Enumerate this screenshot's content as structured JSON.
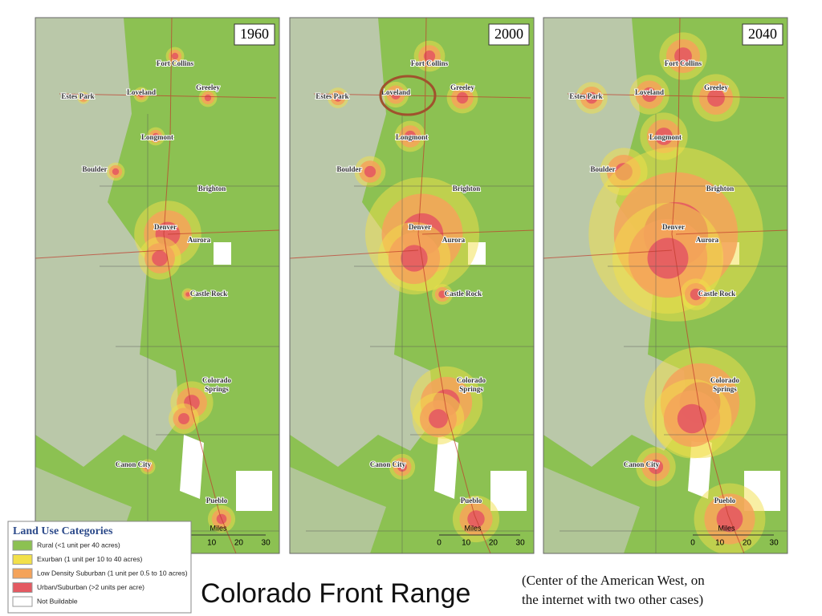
{
  "maps": [
    {
      "year": "1960"
    },
    {
      "year": "2000"
    },
    {
      "year": "2040"
    }
  ],
  "cities": [
    {
      "lines": [
        "Fort Collins"
      ]
    },
    {
      "lines": [
        "Estes Park"
      ]
    },
    {
      "lines": [
        "Loveland"
      ]
    },
    {
      "lines": [
        "Greeley"
      ]
    },
    {
      "lines": [
        "Longmont"
      ]
    },
    {
      "lines": [
        "Boulder"
      ]
    },
    {
      "lines": [
        "Brighton"
      ]
    },
    {
      "lines": [
        "Denver"
      ]
    },
    {
      "lines": [
        "Aurora"
      ]
    },
    {
      "lines": [
        "Castle Rock"
      ]
    },
    {
      "lines": [
        "Colorado",
        "Springs"
      ]
    },
    {
      "lines": [
        "Canon City"
      ]
    },
    {
      "lines": [
        "Pueblo"
      ]
    }
  ],
  "scale": {
    "unit": "Miles",
    "ticks": [
      "0",
      "10",
      "20",
      "30"
    ]
  },
  "legend": {
    "title": "Land Use Categories",
    "items": [
      {
        "label": "Rural (<1 unit per 40 acres)",
        "color": "#8cc152"
      },
      {
        "label": "Exurban (1 unit per 10 to 40 acres)",
        "color": "#f2e04a"
      },
      {
        "label": "Low Density Suburban (1 unit per 0.5 to 10 acres)",
        "color": "#f4a35a"
      },
      {
        "label": "Urban/Suburban (>2 units per acre)",
        "color": "#e45a62"
      },
      {
        "label": "Not Buildable",
        "color": "#ffffff"
      }
    ]
  },
  "title": "Colorado Front Range",
  "caption": [
    "(Center of the American West, on",
    "the internet with two other cases)"
  ]
}
